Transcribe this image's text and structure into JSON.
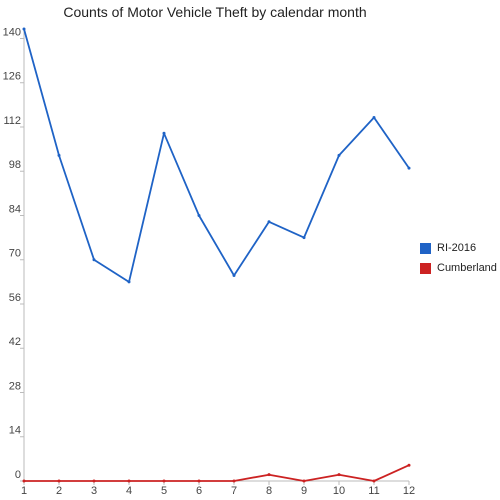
{
  "chart_data": {
    "type": "line",
    "title": "Counts of Motor Vehicle Theft by calendar month",
    "xlabel": "",
    "ylabel": "",
    "x": [
      1,
      2,
      3,
      4,
      5,
      6,
      7,
      8,
      9,
      10,
      11,
      12
    ],
    "xlim": [
      1,
      12
    ],
    "ylim": [
      0,
      143
    ],
    "y_ticks": [
      0,
      14,
      28,
      42,
      56,
      70,
      84,
      98,
      112,
      126,
      140
    ],
    "grid": false,
    "legend_position": "right",
    "series": [
      {
        "name": "RI-2016",
        "color": "#1f63c6",
        "values": [
          143,
          103,
          70,
          63,
          110,
          84,
          65,
          82,
          77,
          103,
          115,
          99
        ]
      },
      {
        "name": "Cumberland",
        "color": "#cc2222",
        "values": [
          0,
          0,
          0,
          0,
          0,
          0,
          0,
          2,
          0,
          2,
          0,
          5
        ]
      }
    ]
  }
}
